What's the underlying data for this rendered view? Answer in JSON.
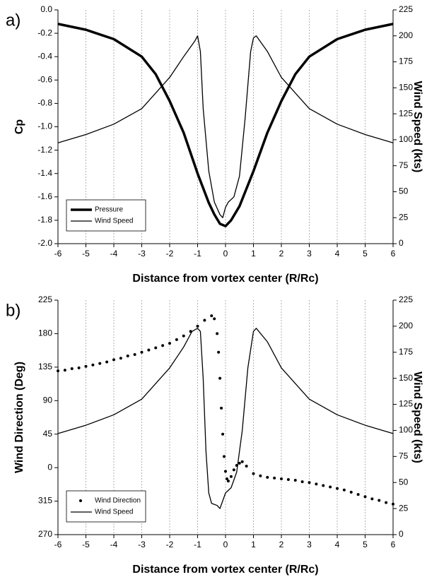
{
  "chart_data": [
    {
      "type": "line",
      "panel_label": "a)",
      "x_label": "Distance from vortex center (R/Rc)",
      "y_label": "Cp",
      "y2_label": "Wind Speed (kts)",
      "xlim": [
        -6,
        6
      ],
      "xticks": [
        -6,
        -5,
        -4,
        -3,
        -2,
        -1,
        0,
        1,
        2,
        3,
        4,
        5,
        6
      ],
      "ylim": [
        -2,
        0
      ],
      "yticks": [
        {
          "value": -2,
          "label": "-2.0"
        },
        -1.8,
        -1.6,
        -1.4,
        -1.2,
        {
          "value": -1,
          "label": "-1.0"
        },
        -0.8,
        -0.6,
        -0.4,
        -0.2,
        {
          "value": 0,
          "label": "0.0"
        }
      ],
      "y2lim": [
        0,
        225
      ],
      "y2ticks": [
        0,
        25,
        50,
        75,
        100,
        125,
        150,
        175,
        200,
        225
      ],
      "grid": true,
      "legend": "lower left",
      "series": [
        {
          "name": "Pressure",
          "color": "#000000",
          "line_width": 3.5,
          "axis": "y",
          "x": [
            -6,
            -5,
            -4,
            -3,
            -2.5,
            -2,
            -1.5,
            -1,
            -0.6,
            -0.4,
            -0.2,
            0,
            0.2,
            0.5,
            1,
            1.5,
            2,
            2.5,
            3,
            4,
            5,
            6
          ],
          "values": [
            -0.12,
            -0.17,
            -0.25,
            -0.4,
            -0.55,
            -0.78,
            -1.05,
            -1.4,
            -1.65,
            -1.75,
            -1.83,
            -1.85,
            -1.8,
            -1.68,
            -1.38,
            -1.05,
            -0.78,
            -0.55,
            -0.4,
            -0.25,
            -0.17,
            -0.12
          ]
        },
        {
          "name": "Wind Speed",
          "color": "#000000",
          "line_width": 1.3,
          "axis": "y2",
          "x": [
            -6,
            -5,
            -4,
            -3,
            -2,
            -1.5,
            -1.1,
            -1,
            -0.9,
            -0.8,
            -0.6,
            -0.4,
            -0.2,
            -0.1,
            0,
            0.1,
            0.3,
            0.5,
            0.7,
            0.9,
            1,
            1.1,
            1.5,
            2,
            3,
            4,
            5,
            6
          ],
          "values": [
            97,
            105,
            115,
            130,
            160,
            180,
            195,
            200,
            185,
            130,
            70,
            40,
            28,
            25,
            35,
            40,
            45,
            65,
            120,
            185,
            198,
            200,
            185,
            160,
            130,
            115,
            105,
            97
          ]
        }
      ]
    },
    {
      "type": "line",
      "panel_label": "b)",
      "x_label": "Distance from vortex center (R/Rc)",
      "y_label": "Wind Direction (Deg)",
      "y2_label": "Wind Speed (kts)",
      "xlim": [
        -6,
        6
      ],
      "xticks": [
        -6,
        -5,
        -4,
        -3,
        -2,
        -1,
        0,
        1,
        2,
        3,
        4,
        5,
        6
      ],
      "ylim": [
        270,
        585
      ],
      "yticks": [
        270,
        315,
        {
          "value": 360,
          "label": "0"
        },
        {
          "value": 405,
          "label": "45"
        },
        {
          "value": 450,
          "label": "90"
        },
        {
          "value": 495,
          "label": "135"
        },
        {
          "value": 540,
          "label": "180"
        },
        {
          "value": 585,
          "label": "225"
        }
      ],
      "y2lim": [
        0,
        225
      ],
      "y2ticks": [
        0,
        25,
        50,
        75,
        100,
        125,
        150,
        175,
        200,
        225
      ],
      "grid": true,
      "legend": "lower left",
      "series": [
        {
          "name": "Wind Direction",
          "color": "#000000",
          "marker": "dot",
          "axis": "y",
          "x": [
            -6,
            -5.75,
            -5.5,
            -5.25,
            -5,
            -4.75,
            -4.5,
            -4.25,
            -4,
            -3.75,
            -3.5,
            -3.25,
            -3,
            -2.75,
            -2.5,
            -2.25,
            -2,
            -1.75,
            -1.5,
            -1.25,
            -1,
            -0.75,
            -0.5,
            -0.4,
            -0.3,
            -0.25,
            -0.2,
            -0.15,
            -0.1,
            -0.05,
            0,
            0.05,
            0.1,
            0.2,
            0.3,
            0.4,
            0.5,
            0.6,
            0.75,
            1,
            1.25,
            1.5,
            1.75,
            2,
            2.25,
            2.5,
            2.75,
            3,
            3.25,
            3.5,
            3.75,
            4,
            4.25,
            4.5,
            4.75,
            5,
            5.25,
            5.5,
            5.75,
            6
          ],
          "values": [
            490,
            491,
            493,
            494,
            496,
            498,
            500,
            502,
            505,
            507,
            510,
            512,
            515,
            518,
            521,
            524,
            527,
            532,
            537,
            543,
            550,
            558,
            564,
            560,
            540,
            515,
            480,
            440,
            405,
            375,
            355,
            345,
            342,
            348,
            357,
            363,
            366,
            368,
            362,
            352,
            349,
            347,
            346,
            345,
            344,
            343,
            341,
            340,
            338,
            336,
            334,
            332,
            330,
            327,
            324,
            321,
            318,
            316,
            313,
            311
          ]
        },
        {
          "name": "Wind Speed",
          "color": "#000000",
          "line_width": 1.3,
          "axis": "y2",
          "x": [
            -6,
            -5,
            -4,
            -3,
            -2,
            -1.5,
            -1.2,
            -1,
            -0.9,
            -0.8,
            -0.7,
            -0.6,
            -0.5,
            -0.3,
            -0.2,
            0,
            0.2,
            0.4,
            0.6,
            0.8,
            1,
            1.1,
            1.5,
            2,
            3,
            4,
            5,
            6
          ],
          "values": [
            97,
            105,
            115,
            130,
            160,
            180,
            195,
            198,
            195,
            150,
            80,
            40,
            30,
            28,
            25,
            40,
            45,
            60,
            100,
            160,
            195,
            198,
            185,
            160,
            130,
            115,
            105,
            97
          ]
        }
      ]
    }
  ]
}
